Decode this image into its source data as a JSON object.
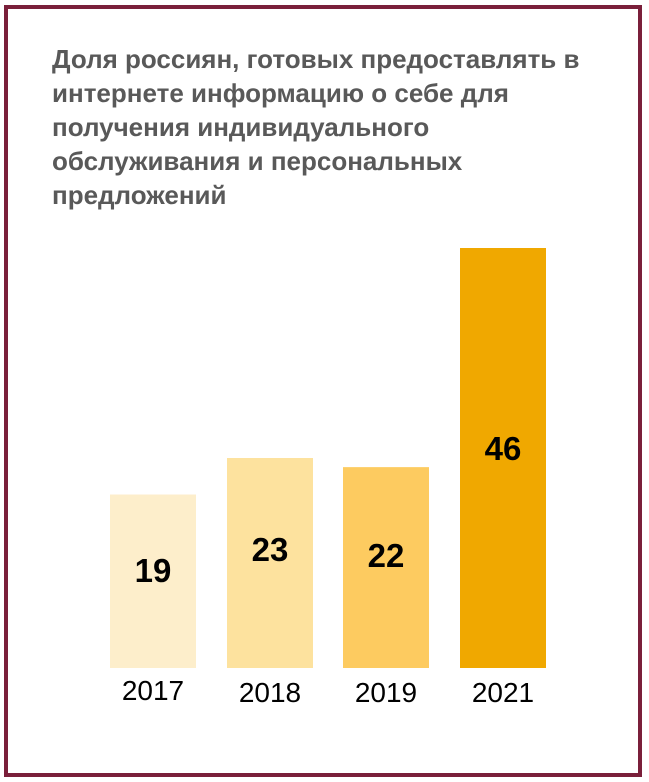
{
  "chart_data": {
    "type": "bar",
    "title": "Доля россиян, готовых предоставлять в интернете информацию о себе для получения индивидуального обслуживания и персональных предложений",
    "categories": [
      "2017",
      "2018",
      "2019",
      "2021"
    ],
    "values": [
      19,
      23,
      22,
      46
    ],
    "bar_colors": [
      "#fdeecb",
      "#fde29e",
      "#fdcb60",
      "#f0a800"
    ],
    "ylim": [
      0,
      48
    ],
    "grid": false,
    "legend": "none",
    "xlabel": "",
    "ylabel": ""
  },
  "colors": {
    "frame_border": "#7a1f3a",
    "title_text": "#595959"
  }
}
